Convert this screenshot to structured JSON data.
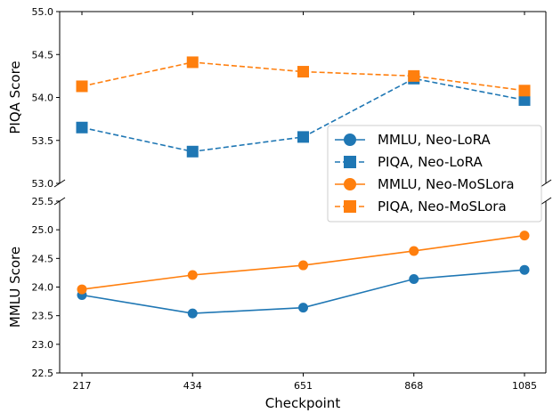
{
  "chart_data": {
    "type": "line",
    "layout": "broken-y-axis",
    "xlabel": "Checkpoint",
    "categories": [
      "217",
      "434",
      "651",
      "868",
      "1085"
    ],
    "panels": [
      {
        "id": "top",
        "ylabel": "PIQA Score",
        "ylim": [
          53.0,
          55.0
        ],
        "yticks": [
          "53.0",
          "53.5",
          "54.0",
          "54.5",
          "55.0"
        ],
        "series": [
          {
            "name": "PIQA, Neo-LoRA",
            "color": "#1f77b4",
            "marker": "square",
            "linestyle": "dashed",
            "values": [
              53.65,
              53.37,
              53.54,
              54.22,
              53.97
            ]
          },
          {
            "name": "PIQA, Neo-MoSLora",
            "color": "#ff7f0e",
            "marker": "square",
            "linestyle": "dashed",
            "values": [
              54.13,
              54.41,
              54.3,
              54.25,
              54.08
            ]
          }
        ]
      },
      {
        "id": "bottom",
        "ylabel": "MMLU Score",
        "ylim": [
          22.5,
          25.5
        ],
        "yticks": [
          "22.5",
          "23.0",
          "23.5",
          "24.0",
          "24.5",
          "25.0",
          "25.5"
        ],
        "series": [
          {
            "name": "MMLU, Neo-LoRA",
            "color": "#1f77b4",
            "marker": "circle",
            "linestyle": "solid",
            "values": [
              23.86,
              23.54,
              23.64,
              24.14,
              24.3
            ]
          },
          {
            "name": "MMLU, Neo-MoSLora",
            "color": "#ff7f0e",
            "marker": "circle",
            "linestyle": "solid",
            "values": [
              23.96,
              24.21,
              24.38,
              24.63,
              24.9
            ]
          }
        ]
      }
    ],
    "legend": {
      "placement": "center-right",
      "entries": [
        {
          "label": "MMLU, Neo-LoRA",
          "color": "#1f77b4",
          "marker": "circle",
          "linestyle": "solid"
        },
        {
          "label": "PIQA, Neo-LoRA",
          "color": "#1f77b4",
          "marker": "square",
          "linestyle": "dashed"
        },
        {
          "label": "MMLU, Neo-MoSLora",
          "color": "#ff7f0e",
          "marker": "circle",
          "linestyle": "solid"
        },
        {
          "label": "PIQA, Neo-MoSLora",
          "color": "#ff7f0e",
          "marker": "square",
          "linestyle": "dashed"
        }
      ]
    },
    "grid": false
  }
}
